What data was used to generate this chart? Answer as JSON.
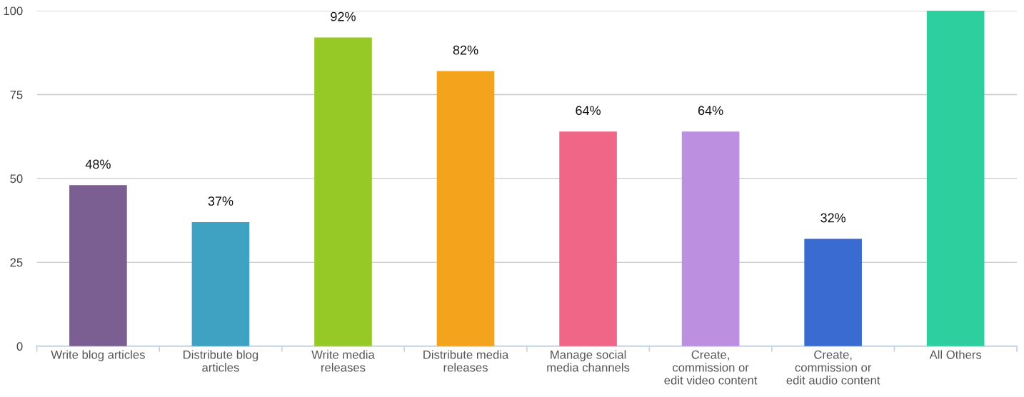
{
  "chart_data": {
    "type": "bar",
    "categories": [
      "Write blog articles",
      "Distribute blog\narticles",
      "Write media\nreleases",
      "Distribute media\nreleases",
      "Manage social\nmedia channels",
      "Create,\ncommission or\nedit video content",
      "Create,\ncommission or\nedit audio content",
      "All Others"
    ],
    "values": [
      48,
      37,
      92,
      82,
      64,
      64,
      32,
      100
    ],
    "colors": [
      "#7b5f92",
      "#3fa2c2",
      "#96c826",
      "#f4a41c",
      "#f06686",
      "#bd8fe0",
      "#3a6bd1",
      "#2ecf9e"
    ],
    "value_labels": [
      "48%",
      "37%",
      "92%",
      "82%",
      "64%",
      "64%",
      "32%",
      null
    ],
    "ylim": [
      0,
      100
    ],
    "yticks": [
      0,
      25,
      50,
      75,
      100
    ],
    "grid": "y"
  }
}
